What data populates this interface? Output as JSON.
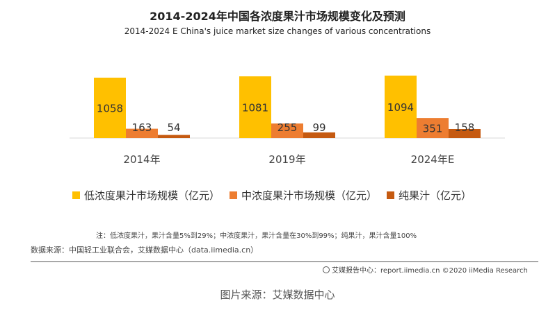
{
  "title": "2014-2024年中国各浓度果汁市场规模变化及预测",
  "subtitle": "2014-2024 E China's juice market size changes of various concentrations",
  "note": "注：低浓度果汁，果汁含量5%到29%；中浓度果汁，果汁含量在30%到99%；纯果汁，果汁含量100%",
  "source": "数据来源：中国轻工业联合会，艾媒数据中心（data.iimedia.cn）",
  "footer": "艾媒报告中心：report.iimedia.cn  ©2020  iiMedia Research",
  "caption": "图片来源：艾媒数据中心",
  "chart_data": {
    "type": "bar",
    "categories": [
      "2014年",
      "2019年",
      "2024年E"
    ],
    "series": [
      {
        "name": "低浓度果汁市场规模（亿元）",
        "values": [
          1058,
          1081,
          1094
        ],
        "color": "#FFC000"
      },
      {
        "name": "中浓度果汁市场规模（亿元）",
        "values": [
          163,
          255,
          351
        ],
        "color": "#ED7D31"
      },
      {
        "name": "纯果汁（亿元）",
        "values": [
          54,
          99,
          158
        ],
        "color": "#C55A11"
      }
    ],
    "legend_position": "bottom",
    "grid": false,
    "ylim": [
      0,
      1100
    ]
  }
}
